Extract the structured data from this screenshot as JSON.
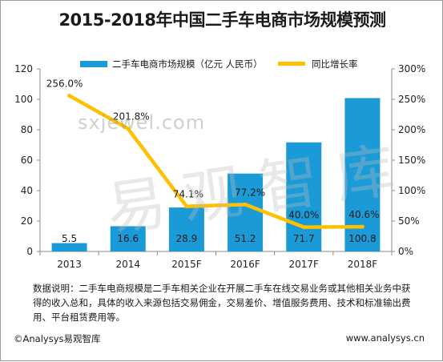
{
  "title": "2015-2018年中国二手车电商市场规模预测",
  "note": "数据说明：二手车电商规模是二手车相关企业在开展二手车在线交易业务或其他相关业务中获得的收入总和，具体的收入来源包括交易佣金，交易差价、增值服务费用、技术和标准输出费用、平台租赁费用等。",
  "copyright": "©Analysys易观智库",
  "website": "www.analysys.cn",
  "watermark": {
    "text": "sxjewel.com",
    "logo": "易观智库"
  },
  "colors": {
    "bar": "#1a9ad6",
    "line": "#ffc000"
  },
  "chart_data": {
    "type": "bar+line",
    "categories": [
      "2013",
      "2014",
      "2015F",
      "2016F",
      "2017F",
      "2018F"
    ],
    "series": [
      {
        "name": "二手车电商市场规模（亿元 人民币）",
        "type": "bar",
        "axis": "left",
        "values": [
          5.5,
          16.6,
          28.9,
          51.2,
          71.7,
          100.8
        ],
        "labels": [
          "5.5",
          "16.6",
          "28.9",
          "51.2",
          "71.7",
          "100.8"
        ]
      },
      {
        "name": "同比增长率",
        "type": "line",
        "axis": "right",
        "values": [
          256.0,
          201.8,
          74.1,
          77.2,
          40.0,
          40.6
        ],
        "labels": [
          "256.0%",
          "201.8%",
          "74.1%",
          "77.2%",
          "40.0%",
          "40.6%"
        ]
      }
    ],
    "y_left": {
      "range": [
        0,
        120
      ],
      "ticks": [
        0,
        20,
        40,
        60,
        80,
        100,
        120
      ]
    },
    "y_right": {
      "range": [
        0,
        300
      ],
      "ticks": [
        0,
        50,
        100,
        150,
        200,
        250,
        300
      ],
      "tick_labels": [
        "0%",
        "50%",
        "100%",
        "150%",
        "200%",
        "250%",
        "300%"
      ]
    },
    "legend": "top",
    "grid": false
  }
}
